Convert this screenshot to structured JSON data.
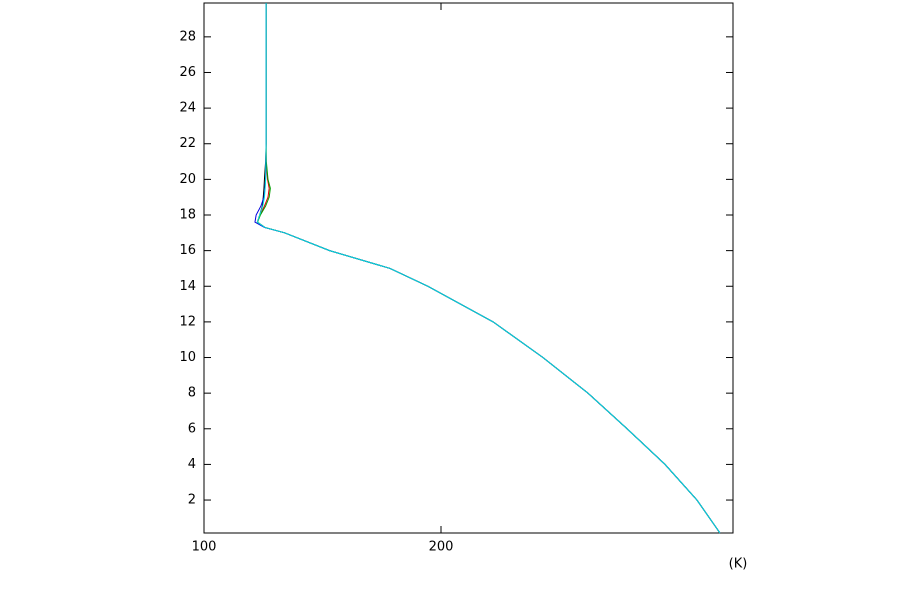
{
  "chart_data": {
    "type": "line",
    "x_label": "(K)",
    "xlim": [
      100,
      323.2
    ],
    "ylim": [
      0.15,
      29.9
    ],
    "xticks": [
      100,
      200
    ],
    "yticks": [
      2,
      4,
      6,
      8,
      10,
      12,
      14,
      16,
      18,
      20,
      22,
      24,
      26,
      28
    ],
    "y": [
      0.15,
      2,
      4,
      6,
      8,
      10,
      12,
      14,
      15,
      16,
      17,
      17.3,
      17.6,
      18,
      18.5,
      19,
      19.5,
      20,
      21,
      22,
      25,
      29.9
    ],
    "series": [
      {
        "color": "#000000",
        "x": [
          317.7,
          308,
          294.5,
          278.5,
          262,
          243,
          222,
          194.5,
          178.5,
          153,
          134,
          125.7,
          122.5,
          123.5,
          124.6,
          125,
          125.3,
          125.5,
          126,
          126.2,
          126.2,
          126.2
        ]
      },
      {
        "color": "#e00000",
        "x": [
          317.7,
          308,
          294.5,
          278.5,
          262,
          243,
          222,
          194.5,
          178.5,
          153,
          134,
          125.7,
          122.5,
          123.6,
          125.5,
          127,
          127.5,
          126.8,
          126.2,
          126.2,
          126.2,
          126.2
        ]
      },
      {
        "color": "#00a000",
        "x": [
          317.7,
          308,
          294.5,
          278.5,
          262,
          243,
          222,
          194.5,
          178.5,
          153,
          134,
          125.7,
          122.6,
          123.8,
          126,
          127.5,
          128,
          127,
          126.3,
          126.2,
          126.2,
          126.2
        ]
      },
      {
        "color": "#0000e0",
        "x": [
          317.7,
          308,
          294.5,
          278.5,
          262,
          243,
          222,
          194.5,
          178.5,
          153,
          134,
          125.5,
          121.5,
          122,
          124,
          125.3,
          125.7,
          126,
          126.1,
          126.2,
          126.2,
          126.2
        ]
      },
      {
        "color": "#00dede",
        "x": [
          317.7,
          308,
          294.5,
          278.5,
          262,
          243,
          222,
          194.5,
          178.5,
          153,
          134,
          125.7,
          122.5,
          123.5,
          124.8,
          125.5,
          125.8,
          126,
          126.1,
          126.2,
          126.2,
          126.2
        ]
      }
    ]
  }
}
